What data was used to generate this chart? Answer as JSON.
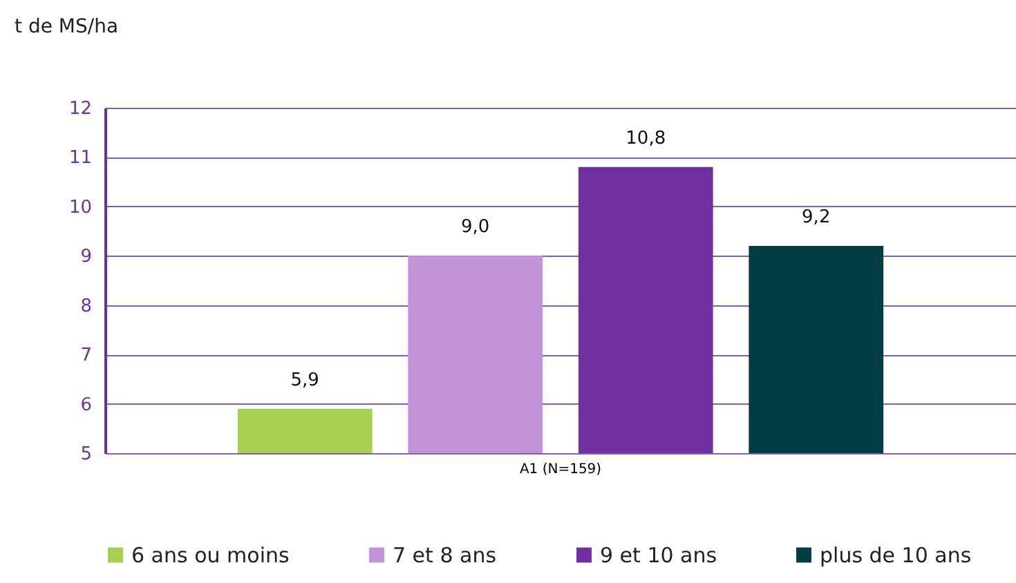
{
  "chart_data": {
    "type": "bar",
    "ylabel": "t de MS/ha",
    "categories": [
      "A1 (N=159)"
    ],
    "series": [
      {
        "name": "6 ans ou moins",
        "color": "#a6d04f",
        "values": [
          5.9
        ],
        "value_labels": [
          "5,9"
        ]
      },
      {
        "name": "7 et 8 ans",
        "color": "#c393d9",
        "values": [
          9.0
        ],
        "value_labels": [
          "9,0"
        ]
      },
      {
        "name": "9 et 10 ans",
        "color": "#7030a0",
        "values": [
          10.8
        ],
        "value_labels": [
          "10,8"
        ]
      },
      {
        "name": "plus de 10 ans",
        "color": "#003c44",
        "values": [
          9.2
        ],
        "value_labels": [
          "9,2"
        ]
      }
    ],
    "ylim": [
      5,
      12
    ],
    "yticks": [
      5,
      6,
      7,
      8,
      9,
      10,
      11,
      12
    ],
    "grid": "y",
    "legend": "bottom"
  }
}
